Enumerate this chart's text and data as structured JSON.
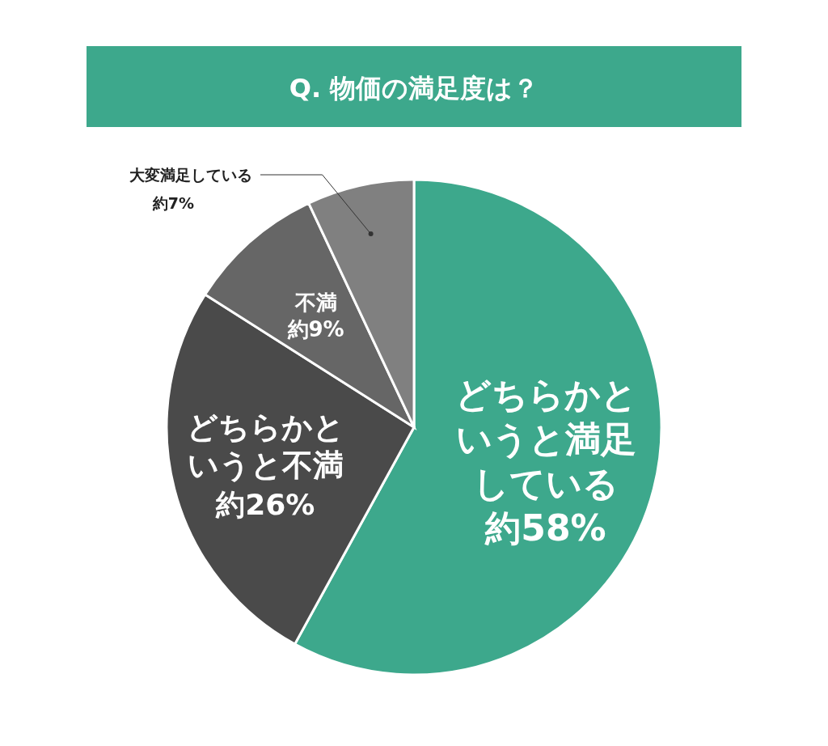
{
  "chart_data": {
    "type": "pie",
    "title": "Q. 物価の満足度は？",
    "categories": [
      "どちらかというと満足している",
      "どちらかというと不満",
      "不満",
      "大変満足している"
    ],
    "values": [
      58,
      26,
      9,
      7
    ],
    "value_labels": [
      "約58%",
      "約26%",
      "約9%",
      "約7%"
    ],
    "colors": [
      "#3da88c",
      "#4a4a4a",
      "#666666",
      "#808080"
    ]
  }
}
